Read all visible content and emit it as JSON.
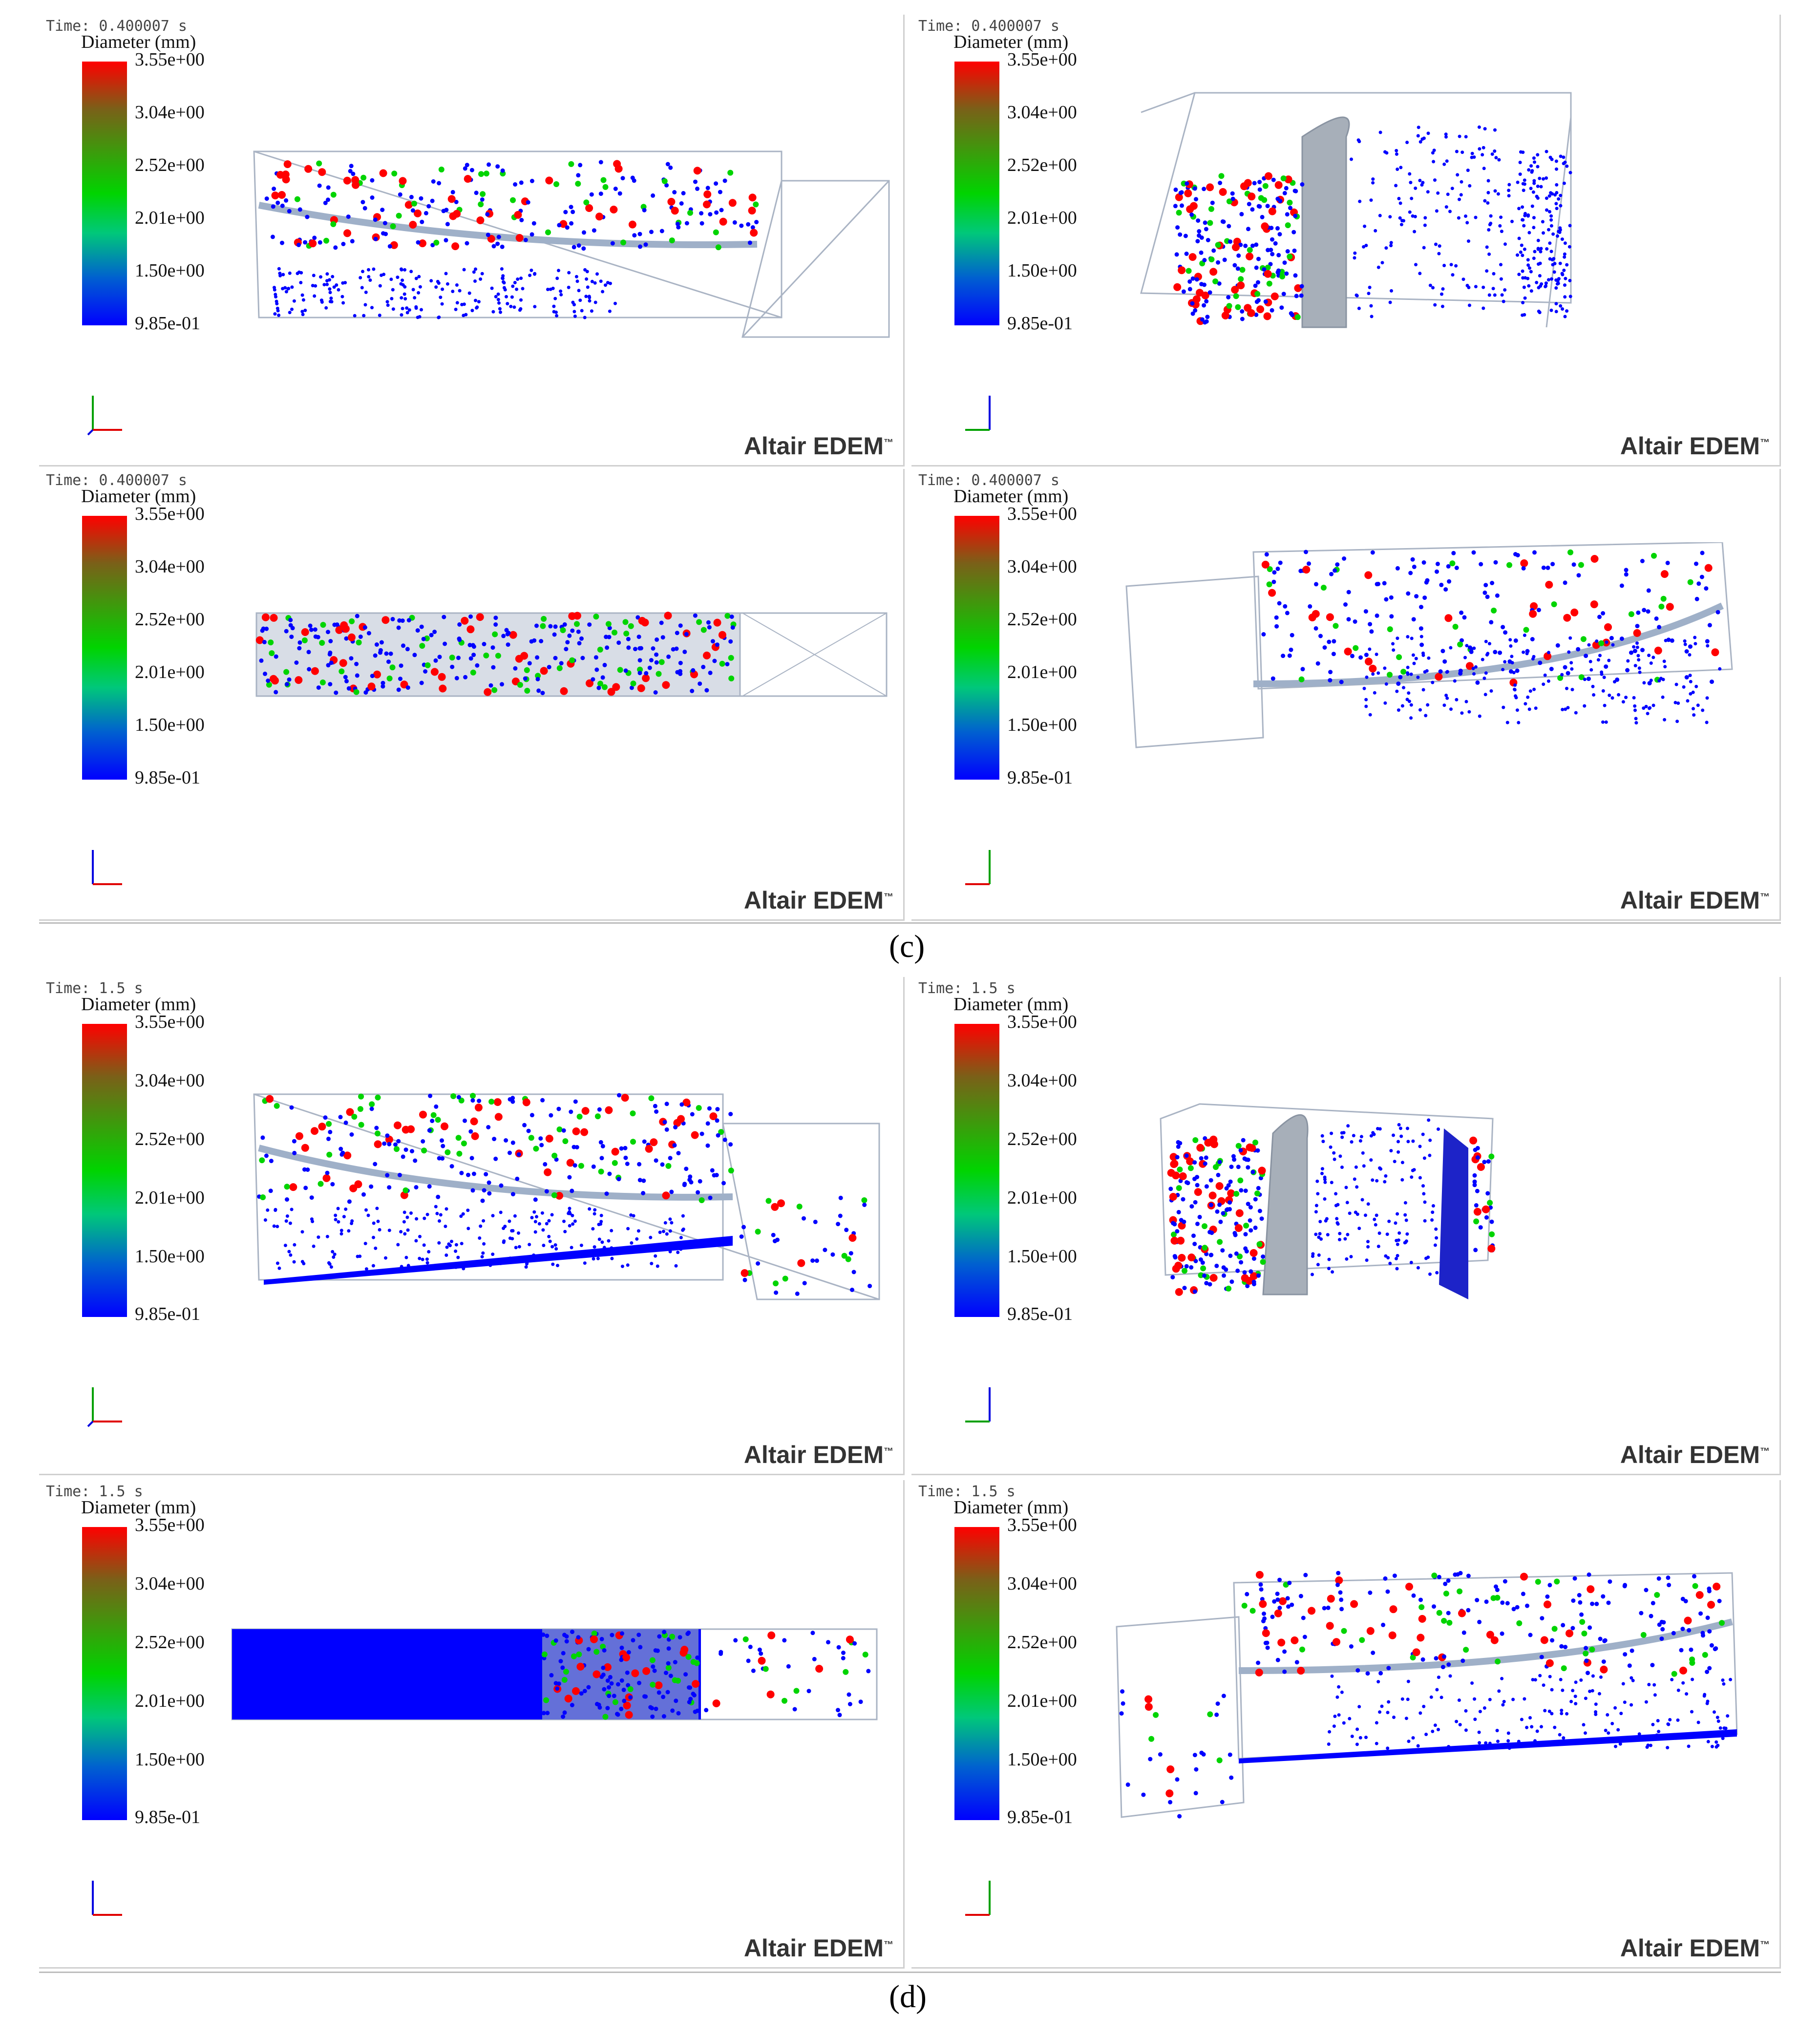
{
  "figure_labels": [
    "(c)",
    "(d)"
  ],
  "panels": [
    {
      "time": "Time: 0.400007 s",
      "title": "Diameter (mm)",
      "axes": {
        "up": "Y",
        "right": "X",
        "depth": "Z"
      },
      "brand": "Altair EDEM",
      "tm": "™"
    },
    {
      "time": "Time: 0.400007 s",
      "title": "Diameter (mm)",
      "axes": {
        "up": "Z",
        "right": "",
        "depth": "Y"
      },
      "brand": "Altair EDEM",
      "tm": "™"
    },
    {
      "time": "Time: 0.400007 s",
      "title": "Diameter (mm)",
      "axes": {
        "up": "Z",
        "right": "X",
        "depth": "Y"
      },
      "brand": "Altair EDEM",
      "tm": "™"
    },
    {
      "time": "Time: 0.400007 s",
      "title": "Diameter (mm)",
      "axes": {
        "up": "Y",
        "right": "",
        "depth": "X"
      },
      "brand": "Altair EDEM",
      "tm": "™"
    },
    {
      "time": "Time: 1.5 s",
      "title": "Diameter (mm)",
      "axes": {
        "up": "Y",
        "right": "X",
        "depth": "Z"
      },
      "brand": "Altair EDEM",
      "tm": "™"
    },
    {
      "time": "Time: 1.5 s",
      "title": "Diameter (mm)",
      "axes": {
        "up": "Z",
        "right": "",
        "depth": "Y"
      },
      "brand": "Altair EDEM",
      "tm": "™"
    },
    {
      "time": "Time: 1.5 s",
      "title": "Diameter (mm)",
      "axes": {
        "up": "Z",
        "right": "X",
        "depth": "Y"
      },
      "brand": "Altair EDEM",
      "tm": "™"
    },
    {
      "time": "Time: 1.5 s",
      "title": "Diameter (mm)",
      "axes": {
        "up": "Y",
        "right": "",
        "depth": "X"
      },
      "brand": "Altair EDEM",
      "tm": "™"
    }
  ],
  "colorbar_labels": [
    "3.55e+00",
    "3.04e+00",
    "2.52e+00",
    "2.01e+00",
    "1.50e+00",
    "9.85e-01"
  ],
  "colors": {
    "high": "#ff0000",
    "mid": "#00d400",
    "low": "#0000ff",
    "geometry": "#aab4c4",
    "axis_x": "#e00000",
    "axis_y": "#00a000",
    "axis_z": "#0000e0"
  }
}
